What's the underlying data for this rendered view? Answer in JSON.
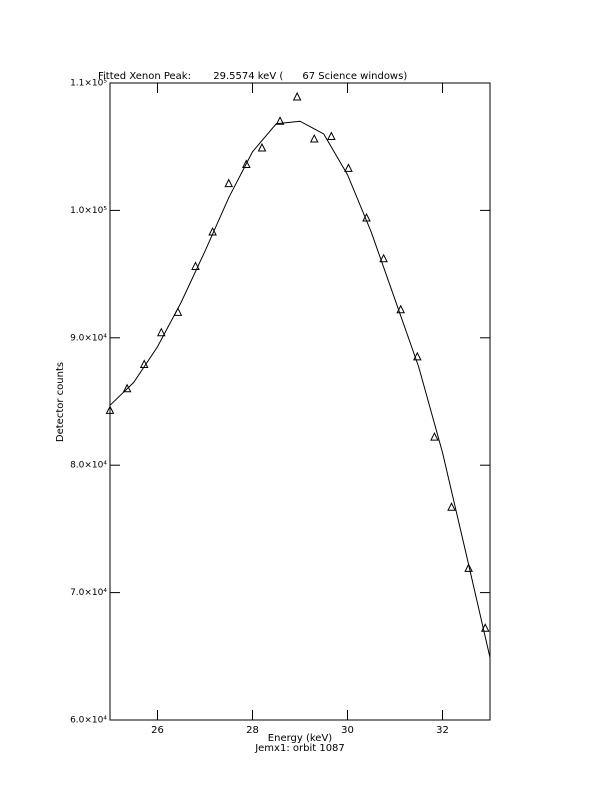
{
  "chart_data": {
    "type": "scatter",
    "title": "Fitted Xenon Peak:       29.5574 keV (      67 Science windows)",
    "x_label": "Energy (keV)",
    "subtitle": "Jemx1: orbit 1087",
    "y_label": "Detector counts",
    "xlim": [
      25,
      33
    ],
    "xticks": [
      26,
      28,
      30,
      32
    ],
    "ylim": [
      60000,
      110000
    ],
    "yticks": [
      {
        "value": 60000,
        "label": "6.0×10⁴"
      },
      {
        "value": 70000,
        "label": "7.0×10⁴"
      },
      {
        "value": 80000,
        "label": "8.0×10⁴"
      },
      {
        "value": 90000,
        "label": "9.0×10⁴"
      },
      {
        "value": 100000,
        "label": "1.0×10⁵"
      },
      {
        "value": 110000,
        "label": "1.1×10⁵"
      }
    ],
    "color": "#000000",
    "series": [
      {
        "marker": "triangle",
        "x": [
          25.0,
          25.36,
          25.72,
          26.08,
          26.43,
          26.8,
          27.16,
          27.5,
          27.87,
          28.2,
          28.58,
          28.94,
          29.3,
          29.66,
          30.02,
          30.4,
          30.76,
          31.12,
          31.47,
          31.83,
          32.19,
          32.55,
          32.9
        ],
        "values": [
          84300,
          86000,
          87900,
          90400,
          92000,
          95600,
          98300,
          102100,
          103600,
          104900,
          107000,
          108900,
          105600,
          105800,
          103300,
          99400,
          96200,
          92200,
          88500,
          82200,
          76700,
          71900,
          67200
        ]
      },
      {
        "marker": "line",
        "x": [
          25,
          25.5,
          26,
          26.5,
          27,
          27.5,
          28,
          28.5,
          29,
          29.5,
          30,
          30.5,
          31,
          31.5,
          32,
          32.5,
          33
        ],
        "values": [
          84700,
          86500,
          89300,
          92800,
          96800,
          101000,
          104600,
          106800,
          107000,
          106000,
          102800,
          98300,
          93000,
          87700,
          81000,
          73000,
          64900
        ]
      }
    ]
  }
}
